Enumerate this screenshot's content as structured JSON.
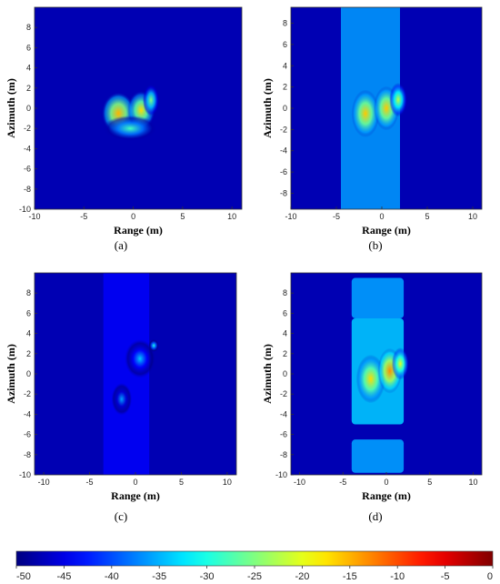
{
  "chart_data": {
    "type": "heatmap",
    "panels": [
      {
        "caption": "(a)",
        "xlabel": "Range (m)",
        "ylabel": "Azimuth (m)",
        "xlim": [
          -10,
          11
        ],
        "ylim": [
          -10,
          10
        ],
        "x_ticks": [
          -10,
          -5,
          0,
          5,
          10
        ],
        "y_ticks": [
          8,
          6,
          4,
          2,
          0,
          -2,
          -4,
          -6,
          -8,
          -10
        ],
        "blobs": [
          {
            "x": -1.5,
            "y": -0.5,
            "sx": 1.2,
            "sy": 1.3,
            "level": -15
          },
          {
            "x": 0.8,
            "y": -0.2,
            "sx": 1.0,
            "sy": 1.2,
            "level": -17
          },
          {
            "x": 1.8,
            "y": 0.8,
            "sx": 0.6,
            "sy": 1.0,
            "level": -25
          },
          {
            "x": -0.3,
            "y": -2.0,
            "sx": 2.0,
            "sy": 0.8,
            "level": -28
          }
        ]
      },
      {
        "caption": "(b)",
        "xlabel": "Range (m)",
        "ylabel": "Azimuth (m)",
        "xlim": [
          -10,
          11
        ],
        "ylim": [
          -9.5,
          9.5
        ],
        "x_ticks": [
          -10,
          -5,
          0,
          5,
          10
        ],
        "y_ticks": [
          8,
          6,
          4,
          2,
          0,
          -2,
          -4,
          -6,
          -8
        ],
        "stripe": {
          "x_min": -4.5,
          "x_max": 2,
          "level": -36
        },
        "blobs": [
          {
            "x": -1.8,
            "y": -0.5,
            "sx": 1.1,
            "sy": 1.4,
            "level": -16
          },
          {
            "x": 0.5,
            "y": 0.0,
            "sx": 1.0,
            "sy": 1.3,
            "level": -16
          },
          {
            "x": 1.8,
            "y": 0.8,
            "sx": 0.7,
            "sy": 1.0,
            "level": -22
          }
        ]
      },
      {
        "caption": "(c)",
        "xlabel": "Range (m)",
        "ylabel": "Azimuth (m)",
        "xlim": [
          -11,
          11
        ],
        "ylim": [
          -10,
          10
        ],
        "x_ticks": [
          -10,
          -5,
          0,
          5,
          10
        ],
        "y_ticks": [
          8,
          6,
          4,
          2,
          0,
          -2,
          -4,
          -6,
          -8,
          -10
        ],
        "stripe": {
          "x_min": -3.5,
          "x_max": 1.5,
          "level": -44
        },
        "blobs": [
          {
            "x": 0.5,
            "y": 1.5,
            "sx": 1.2,
            "sy": 1.2,
            "level": -34
          },
          {
            "x": -1.5,
            "y": -2.5,
            "sx": 0.8,
            "sy": 1.0,
            "level": -36
          },
          {
            "x": 2.0,
            "y": 2.8,
            "sx": 0.4,
            "sy": 0.4,
            "level": -30
          }
        ]
      },
      {
        "caption": "(d)",
        "xlabel": "Range (m)",
        "ylabel": "Azimuth (m)",
        "xlim": [
          -11,
          11
        ],
        "ylim": [
          -10,
          10
        ],
        "x_ticks": [
          -10,
          -5,
          0,
          5,
          10
        ],
        "y_ticks": [
          8,
          6,
          4,
          2,
          0,
          -2,
          -4,
          -6,
          -8,
          -10
        ],
        "stripe_segments": [
          {
            "x_min": -4,
            "x_max": 2,
            "y_min": 5.5,
            "y_max": 9.5,
            "level": -36
          },
          {
            "x_min": -4,
            "x_max": 2,
            "y_min": -5,
            "y_max": 5.5,
            "level": -34
          },
          {
            "x_min": -4,
            "x_max": 2,
            "y_min": -9.8,
            "y_max": -6.5,
            "level": -36
          }
        ],
        "blobs": [
          {
            "x": -1.8,
            "y": -0.5,
            "sx": 1.2,
            "sy": 1.5,
            "level": -17
          },
          {
            "x": 0.4,
            "y": 0.3,
            "sx": 1.0,
            "sy": 1.4,
            "level": -13
          },
          {
            "x": 1.6,
            "y": 1.0,
            "sx": 0.7,
            "sy": 1.0,
            "level": -20
          }
        ]
      }
    ],
    "colorbar": {
      "colormap": "jet",
      "range": [
        -50,
        0
      ],
      "ticks": [
        "-50",
        "-45",
        "-40",
        "-35",
        "-30",
        "-25",
        "-20",
        "-15",
        "-10",
        "-5",
        "0"
      ]
    }
  }
}
